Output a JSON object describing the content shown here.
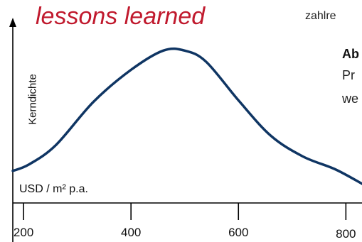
{
  "header": {
    "title": "lessons learned",
    "side_text_top": "zahlre",
    "side_text_bold": "Ab",
    "side_text_line2": "Pr",
    "side_text_line3": "we"
  },
  "chart_data": {
    "type": "area",
    "title": "lessons learned",
    "xlabel": "USD / m² p.a.",
    "ylabel": "Kerndichte",
    "x_ticks": [
      200,
      400,
      600,
      800
    ],
    "x_tick_labels": [
      "200",
      "400",
      "600",
      "800"
    ],
    "xlim": [
      180,
      830
    ],
    "ylim": [
      0,
      1
    ],
    "series": [
      {
        "x": [
          180,
          210,
          260,
          330,
          400,
          460,
          500,
          540,
          600,
          660,
          720,
          780,
          830
        ],
        "values": [
          0.2,
          0.24,
          0.36,
          0.63,
          0.83,
          0.95,
          0.95,
          0.88,
          0.64,
          0.42,
          0.29,
          0.21,
          0.12
        ]
      }
    ],
    "line_color": "#0f3563",
    "grid": false,
    "legend": "none"
  }
}
